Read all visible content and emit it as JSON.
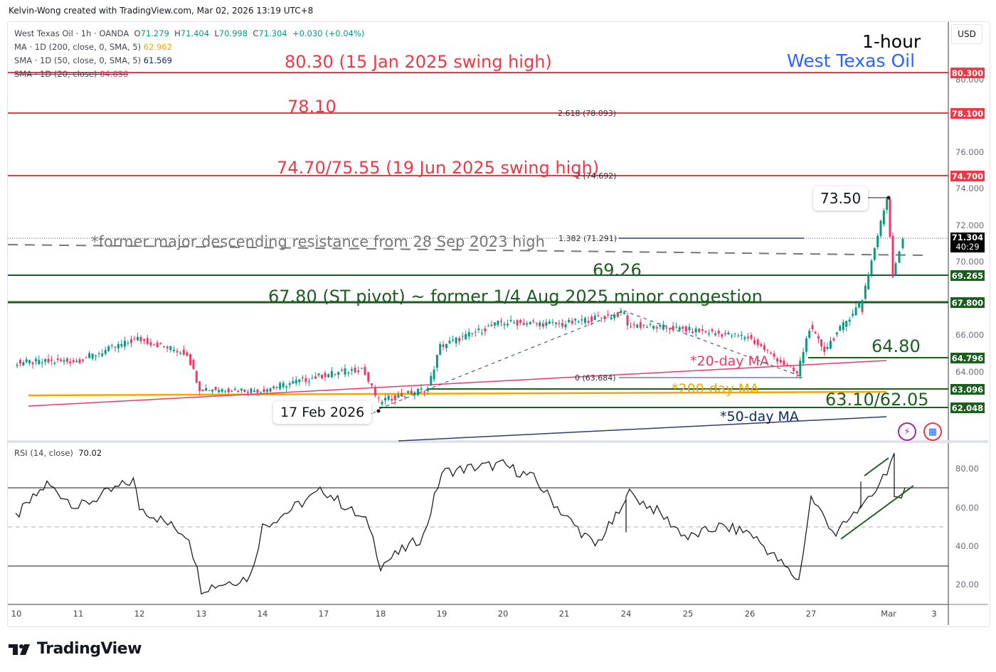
{
  "credit": "Kelvin-Wong created with TradingView.com, Mar 02, 2026 13:19 UTC+8",
  "legend": {
    "symbol": "West Texas Oil · 1h · OANDA",
    "open_label": "O",
    "open": "71.279",
    "high_label": "H",
    "high": "71.404",
    "low_label": "L",
    "low": "70.998",
    "close_label": "C",
    "close": "71.304",
    "change": "+0.030 (+0.04%)",
    "ma200_label": "MA · 1D (200, close, 0, SMA, 5)",
    "ma200_value": "62.962",
    "sma50_label": "SMA · 1D (50, close, 0, SMA, 5)",
    "sma50_value": "61.569",
    "sma20_label": "SMA · 1D (20, close)",
    "sma20_value": "64.636"
  },
  "header": {
    "timeframe": "1-hour",
    "instrument": "West Texas Oil"
  },
  "currency_button": "USD",
  "price_axis": {
    "ticks": [
      "80.000",
      "76.000",
      "74.000",
      "72.000",
      "70.000",
      "66.000",
      "64.000"
    ],
    "tags": {
      "r1": "80.300",
      "r2": "78.100",
      "r3": "74.700",
      "last": "71.304",
      "countdown": "40:29",
      "s1": "69.265",
      "s2": "67.800",
      "s3": "64.796",
      "s4": "63.096",
      "s5": "62.048"
    }
  },
  "annotations": {
    "r1": "80.30 (15 Jan 2025 swing high)",
    "r2": "78.10",
    "r3": "74.70/75.55 (19 Jun 2025 swing high)",
    "desc_res": "*former major descending resistance from 28 Sep 2023 high",
    "s1": "69.26",
    "s2": "67.80 (ST pivot) ~ former 1/4 Aug 2025 minor congestion",
    "s3": "64.80",
    "ma20": "*20-day MA",
    "ma200": "*200-day MA",
    "s45": "63.10/62.05",
    "ma50": "*50-day MA",
    "high_callout": "73.50",
    "low_callout": "17 Feb 2026"
  },
  "fib": {
    "f2618": "2.618 (78.093)",
    "f2": "2 (74.692)",
    "f1382": "1.382 (71.291)",
    "f0": "0 (63.684)"
  },
  "rsi": {
    "label": "RSI (14, close)",
    "value": "70.02",
    "ticks": [
      "80.00",
      "60.00",
      "40.00",
      "20.00"
    ]
  },
  "x_axis": [
    "10",
    "11",
    "12",
    "13",
    "14",
    "17",
    "18",
    "19",
    "20",
    "21",
    "24",
    "25",
    "26",
    "27",
    "Mar",
    "3"
  ],
  "brand": "TradingView",
  "colors": {
    "resistance": "#f23645",
    "support": "#1b5e20",
    "up": "#089981",
    "down": "#f23667",
    "ma20": "#f23667",
    "ma200": "#f7a600",
    "ma50": "#2a3f6b",
    "instrument": "#2962ff"
  },
  "chart_data": [
    {
      "type": "candlestick",
      "title": "West Texas Oil · 1h · OANDA",
      "xlabel": "",
      "ylabel": "USD",
      "x_ticks": [
        "10",
        "11",
        "12",
        "13",
        "14",
        "17",
        "18",
        "19",
        "20",
        "21",
        "24",
        "25",
        "26",
        "27",
        "Mar",
        "3"
      ],
      "ylim": [
        61.0,
        81.5
      ],
      "ohlc_last": {
        "open": 71.279,
        "high": 71.404,
        "low": 70.998,
        "close": 71.304
      },
      "approx_close_path": [
        {
          "x": "10",
          "y": 64.5
        },
        {
          "x": "11",
          "y": 64.6
        },
        {
          "x": "12",
          "y": 65.8
        },
        {
          "x": "12.8",
          "y": 65.0
        },
        {
          "x": "13",
          "y": 63.1
        },
        {
          "x": "14",
          "y": 63.0
        },
        {
          "x": "17",
          "y": 63.8
        },
        {
          "x": "17.7",
          "y": 64.2
        },
        {
          "x": "18",
          "y": 62.4
        },
        {
          "x": "18.8",
          "y": 63.1
        },
        {
          "x": "19",
          "y": 65.4
        },
        {
          "x": "20",
          "y": 66.7
        },
        {
          "x": "21",
          "y": 66.6
        },
        {
          "x": "23.9",
          "y": 67.2
        },
        {
          "x": "24",
          "y": 66.6
        },
        {
          "x": "25",
          "y": 66.3
        },
        {
          "x": "26",
          "y": 65.9
        },
        {
          "x": "26.8",
          "y": 63.9
        },
        {
          "x": "27",
          "y": 66.4
        },
        {
          "x": "27.3",
          "y": 65.2
        },
        {
          "x": "28",
          "y": 67.7
        },
        {
          "x": "28.3",
          "y": 67.3
        },
        {
          "x": "Mar 1 open",
          "y": 73.5
        },
        {
          "x": "Mar 1",
          "y": 69.3
        },
        {
          "x": "Mar 2",
          "y": 71.3
        }
      ],
      "horizontal_levels": [
        {
          "value": 80.3,
          "label": "80.30 (15 Jan 2025 swing high)",
          "role": "resistance"
        },
        {
          "value": 78.1,
          "label": "78.10",
          "role": "resistance"
        },
        {
          "value": 74.7,
          "label": "74.70/75.55 (19 Jun 2025 swing high)",
          "role": "resistance"
        },
        {
          "value": 69.265,
          "label": "69.26",
          "role": "support"
        },
        {
          "value": 67.8,
          "label": "67.80 (ST pivot) ~ former 1/4 Aug 2025 minor congestion",
          "role": "support"
        },
        {
          "value": 64.796,
          "label": "64.80",
          "role": "support"
        },
        {
          "value": 63.096,
          "label": "63.10",
          "role": "support"
        },
        {
          "value": 62.048,
          "label": "62.05",
          "role": "support"
        }
      ],
      "fibonacci_extension": [
        {
          "level": 2.618,
          "price": 78.093
        },
        {
          "level": 2,
          "price": 74.692
        },
        {
          "level": 1.382,
          "price": 71.291
        },
        {
          "level": 0,
          "price": 63.684
        }
      ],
      "moving_averages": [
        {
          "name": "*20-day MA",
          "value": 64.636,
          "color": "#f23667"
        },
        {
          "name": "*200-day MA",
          "value": 62.962,
          "color": "#f7a600"
        },
        {
          "name": "*50-day MA",
          "value": 61.569,
          "color": "#2a3f6b"
        }
      ],
      "callouts": [
        {
          "label": "73.50",
          "value": 73.5
        },
        {
          "label": "17 Feb 2026",
          "value": 62.35
        }
      ]
    },
    {
      "type": "line",
      "title": "RSI (14, close)",
      "current": 70.02,
      "ylim": [
        10,
        90
      ],
      "y_ticks": [
        20,
        40,
        60,
        80
      ],
      "bands": {
        "upper": 70,
        "middle": 50,
        "lower": 30
      },
      "approx_values": [
        {
          "x": "10",
          "y": 55
        },
        {
          "x": "10.5",
          "y": 72
        },
        {
          "x": "11",
          "y": 60
        },
        {
          "x": "11.9",
          "y": 74
        },
        {
          "x": "12",
          "y": 60
        },
        {
          "x": "12.8",
          "y": 45
        },
        {
          "x": "13",
          "y": 18
        },
        {
          "x": "13.8",
          "y": 24
        },
        {
          "x": "14",
          "y": 50
        },
        {
          "x": "17",
          "y": 69
        },
        {
          "x": "17.8",
          "y": 51
        },
        {
          "x": "18",
          "y": 30
        },
        {
          "x": "18.7",
          "y": 45
        },
        {
          "x": "19",
          "y": 78
        },
        {
          "x": "19.6",
          "y": 81
        },
        {
          "x": "20",
          "y": 82
        },
        {
          "x": "20.5",
          "y": 75
        },
        {
          "x": "21",
          "y": 56
        },
        {
          "x": "21.5",
          "y": 40
        },
        {
          "x": "22",
          "y": 62
        },
        {
          "x": "23",
          "y": 50
        },
        {
          "x": "24",
          "y": 68
        },
        {
          "x": "24.5",
          "y": 58
        },
        {
          "x": "25",
          "y": 44
        },
        {
          "x": "25.5",
          "y": 50
        },
        {
          "x": "26",
          "y": 47
        },
        {
          "x": "26.8",
          "y": 22
        },
        {
          "x": "27",
          "y": 65
        },
        {
          "x": "27.5",
          "y": 46
        },
        {
          "x": "28",
          "y": 60
        },
        {
          "x": "28.3",
          "y": 76
        },
        {
          "x": "28.5",
          "y": 57
        },
        {
          "x": "Mar 1",
          "y": 86
        },
        {
          "x": "Mar 1.2",
          "y": 63
        },
        {
          "x": "Mar 2",
          "y": 70
        }
      ],
      "annotations": [
        "bearish divergence line (upper)",
        "ascending support trendline (lower)"
      ]
    }
  ]
}
